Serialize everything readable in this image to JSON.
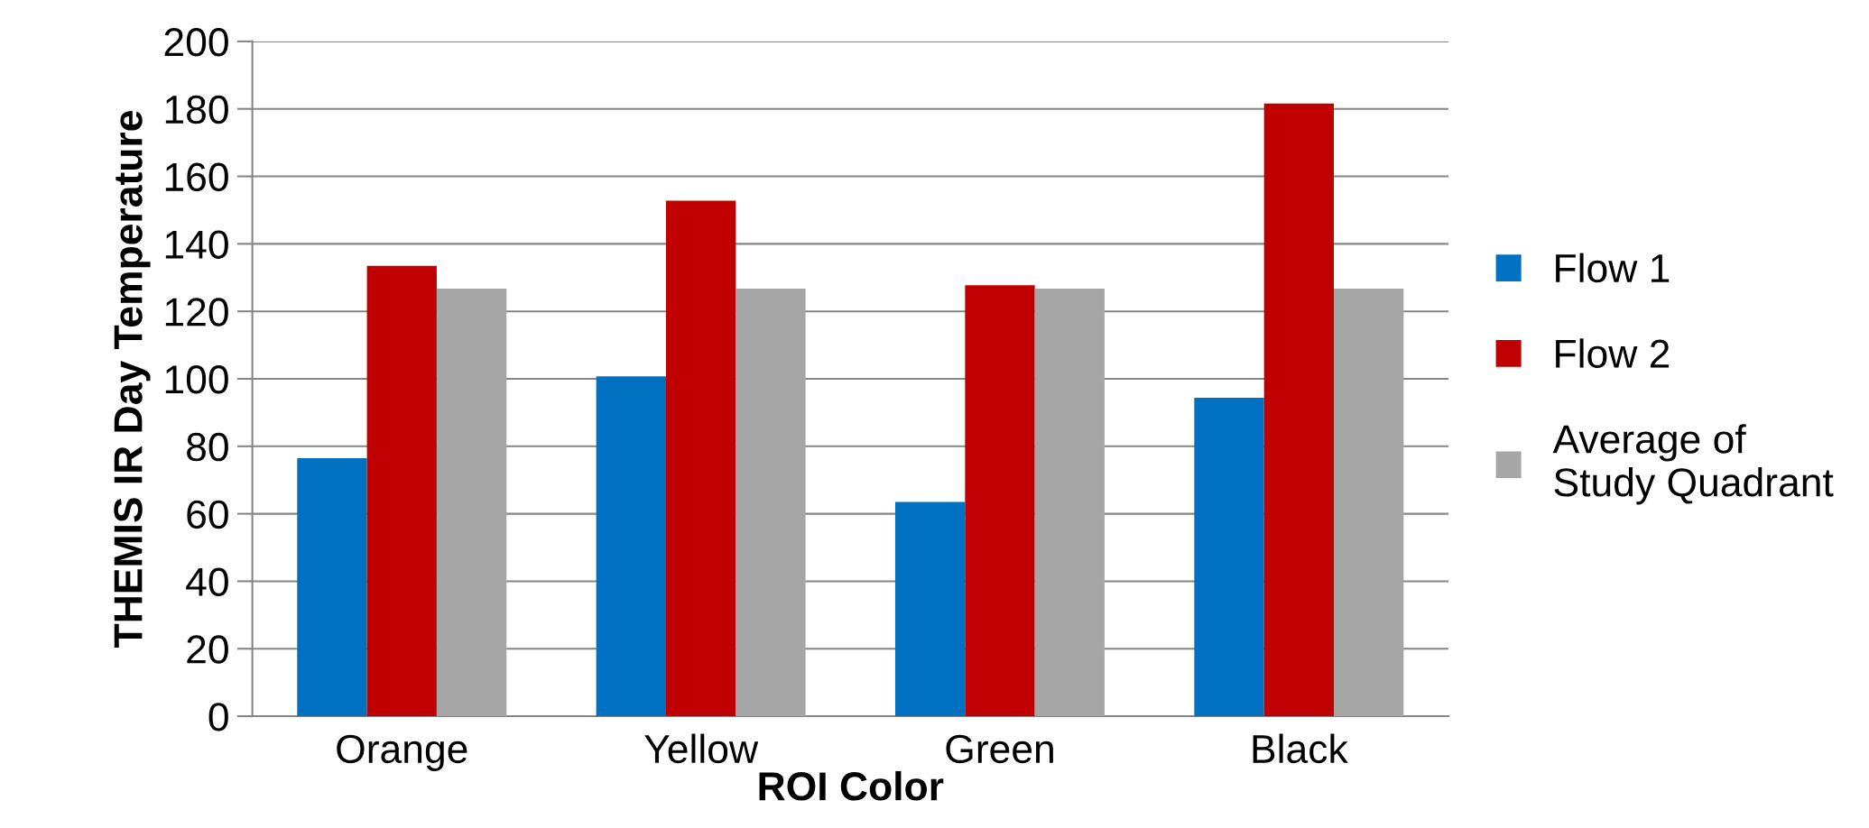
{
  "chart_data": {
    "type": "bar",
    "xlabel": "ROI Color",
    "ylabel": "THEMIS IR Day Temperature",
    "categories": [
      "Orange",
      "Yellow",
      "Green",
      "Black"
    ],
    "series": [
      {
        "name": "Flow 1",
        "color": "#0070c0",
        "values": [
          76.5,
          100.7,
          63.5,
          94.4
        ]
      },
      {
        "name": "Flow 2",
        "color": "#c00000",
        "values": [
          133.5,
          152.8,
          127.7,
          181.6
        ]
      },
      {
        "name": "Average of\nStudy Quadrant",
        "color": "#a6a6a6",
        "values": [
          126.7,
          126.7,
          126.7,
          126.7
        ]
      }
    ],
    "ylim": [
      0,
      200
    ],
    "yticks": [
      0,
      20,
      40,
      60,
      80,
      100,
      120,
      140,
      160,
      180,
      200
    ],
    "grid": "y",
    "legend": "right"
  }
}
